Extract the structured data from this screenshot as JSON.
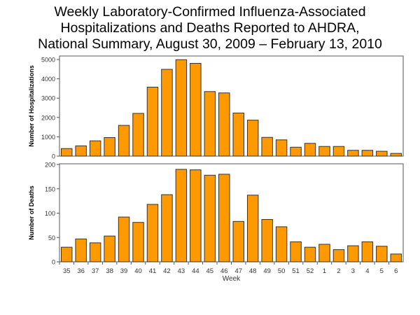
{
  "title_lines": [
    "Weekly Laboratory-Confirmed Influenza-Associated",
    "Hospitalizations and Deaths Reported to AHDRA,",
    "National Summary, August 30, 2009 – February 13, 2010"
  ],
  "colors": {
    "bar": "#FF9900",
    "bar_edge": "#333333",
    "axis": "#555555"
  },
  "chart_data": [
    {
      "type": "bar",
      "ylabel": "Number of Hospitalizations",
      "xlabel": "",
      "ylim": [
        0,
        5000
      ],
      "yticks": [
        0,
        1000,
        2000,
        3000,
        4000,
        5000
      ],
      "categories": [
        "35",
        "36",
        "37",
        "38",
        "39",
        "40",
        "41",
        "42",
        "43",
        "44",
        "45",
        "46",
        "47",
        "48",
        "49",
        "50",
        "51",
        "52",
        "1",
        "2",
        "3",
        "4",
        "5",
        "6"
      ],
      "values": [
        390,
        530,
        790,
        960,
        1590,
        2210,
        3570,
        4490,
        4990,
        4800,
        3340,
        3270,
        2230,
        1860,
        970,
        840,
        460,
        660,
        500,
        500,
        300,
        300,
        250,
        140
      ]
    },
    {
      "type": "bar",
      "ylabel": "Number of Deaths",
      "xlabel": "Week",
      "ylim": [
        0,
        200
      ],
      "yticks": [
        0,
        50,
        100,
        150,
        200
      ],
      "categories": [
        "35",
        "36",
        "37",
        "38",
        "39",
        "40",
        "41",
        "42",
        "43",
        "44",
        "45",
        "46",
        "47",
        "48",
        "49",
        "50",
        "51",
        "52",
        "1",
        "2",
        "3",
        "4",
        "5",
        "6"
      ],
      "values": [
        30,
        47,
        39,
        53,
        92,
        81,
        118,
        138,
        190,
        189,
        178,
        180,
        83,
        137,
        87,
        72,
        41,
        30,
        36,
        25,
        33,
        41,
        32,
        16
      ]
    }
  ]
}
